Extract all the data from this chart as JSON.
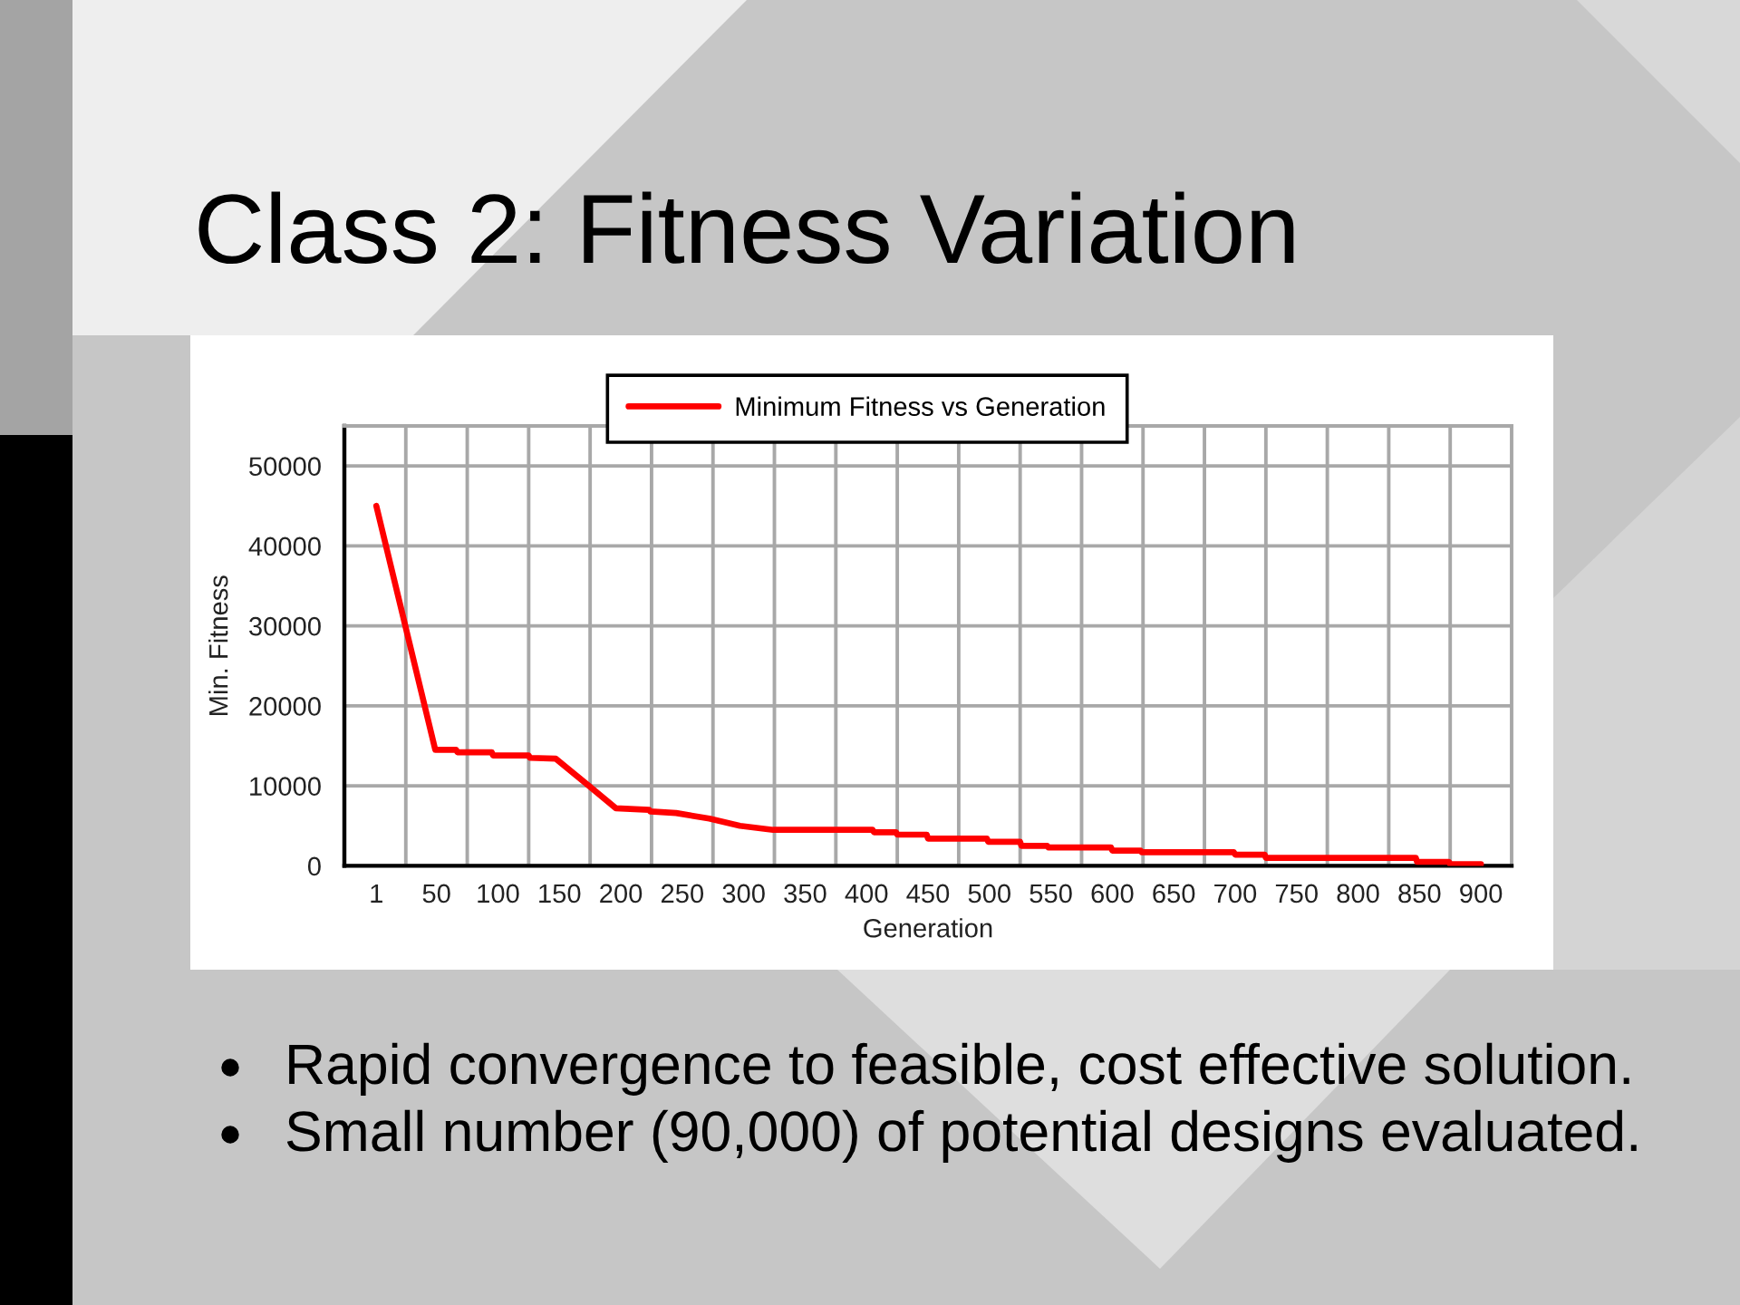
{
  "chart_data": {
    "type": "line",
    "title": "Class 2: Fitness Variation",
    "xlabel": "Generation",
    "ylabel": "Min. Fitness",
    "annotations": [
      "Rapid convergence to feasible, cost effective solution.",
      "Small number (90,000) of potential designs evaluated."
    ],
    "series": [
      {
        "name": "Minimum Fitness vs Generation",
        "color": "#ff0000",
        "x": [
          1,
          49,
          66,
          67,
          95,
          96,
          125,
          126,
          147,
          174,
          196,
          223,
          224,
          245,
          272,
          297,
          324,
          405,
          406,
          424,
          425,
          449,
          450,
          498,
          499,
          525,
          526,
          547,
          548,
          599,
          600,
          623,
          624,
          699,
          700,
          724,
          725,
          847,
          848,
          874,
          875,
          900
        ],
        "values": [
          45000,
          14500,
          14500,
          14200,
          14200,
          13800,
          13800,
          13500,
          13400,
          10000,
          7200,
          7000,
          6800,
          6600,
          5900,
          5000,
          4500,
          4500,
          4200,
          4200,
          3900,
          3900,
          3400,
          3400,
          3000,
          3000,
          2500,
          2500,
          2300,
          2300,
          1900,
          1900,
          1700,
          1700,
          1400,
          1400,
          1000,
          1000,
          500,
          500,
          200,
          200
        ]
      }
    ],
    "xlim": [
      -25,
      925
    ],
    "xticks": [
      1,
      {
        "value": 25,
        "label": null
      },
      50,
      {
        "value": 75,
        "label": null
      },
      100,
      {
        "value": 125,
        "label": null
      },
      150,
      {
        "value": 175,
        "label": null
      },
      200,
      {
        "value": 225,
        "label": null
      },
      250,
      {
        "value": 275,
        "label": null
      },
      300,
      {
        "value": 325,
        "label": null
      },
      350,
      {
        "value": 375,
        "label": null
      },
      400,
      {
        "value": 425,
        "label": null
      },
      450,
      {
        "value": 475,
        "label": null
      },
      500,
      {
        "value": 525,
        "label": null
      },
      550,
      {
        "value": 575,
        "label": null
      },
      600,
      {
        "value": 625,
        "label": null
      },
      650,
      {
        "value": 675,
        "label": null
      },
      700,
      {
        "value": 725,
        "label": null
      },
      750,
      {
        "value": 775,
        "label": null
      },
      800,
      {
        "value": 825,
        "label": null
      },
      850,
      {
        "value": 875,
        "label": null
      },
      900
    ],
    "ylim": [
      0,
      55000
    ],
    "yticks": [
      0,
      10000,
      20000,
      30000,
      40000,
      50000
    ],
    "grid": true,
    "legend": "top"
  }
}
